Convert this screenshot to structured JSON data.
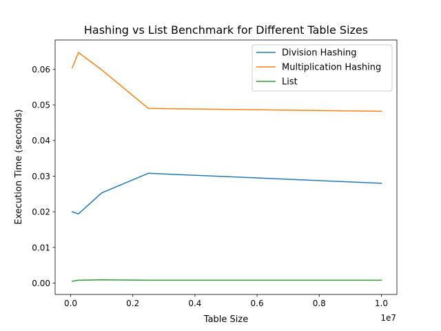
{
  "chart_data": {
    "type": "line",
    "title": "Hashing vs List Benchmark for Different Table Sizes",
    "xlabel": "Table Size",
    "ylabel": "Execution Time (seconds)",
    "x_offset_label": "1e7",
    "xlim": [
      -500000,
      10500000
    ],
    "ylim": [
      -0.0032,
      0.0682
    ],
    "x_ticks": [
      {
        "value": 0,
        "label": "0.0"
      },
      {
        "value": 2000000,
        "label": "0.2"
      },
      {
        "value": 4000000,
        "label": "0.4"
      },
      {
        "value": 6000000,
        "label": "0.6"
      },
      {
        "value": 8000000,
        "label": "0.8"
      },
      {
        "value": 10000000,
        "label": "1.0"
      }
    ],
    "y_ticks": [
      {
        "value": 0.0,
        "label": "0.00"
      },
      {
        "value": 0.01,
        "label": "0.01"
      },
      {
        "value": 0.02,
        "label": "0.02"
      },
      {
        "value": 0.03,
        "label": "0.03"
      },
      {
        "value": 0.04,
        "label": "0.04"
      },
      {
        "value": 0.05,
        "label": "0.05"
      },
      {
        "value": 0.06,
        "label": "0.06"
      }
    ],
    "x": [
      50000,
      250000,
      1000000,
      2500000,
      10000000
    ],
    "series": [
      {
        "name": "Division Hashing",
        "color": "#1f77b4",
        "values": [
          0.02,
          0.0194,
          0.0253,
          0.0308,
          0.028
        ]
      },
      {
        "name": "Multiplication Hashing",
        "color": "#ff7f0e",
        "values": [
          0.0604,
          0.0647,
          0.0598,
          0.049,
          0.0482
        ]
      },
      {
        "name": "List",
        "color": "#2ca02c",
        "values": [
          0.0005,
          0.0008,
          0.0009,
          0.0008,
          0.0008
        ]
      }
    ],
    "grid": false,
    "legend_position": "top-right"
  }
}
